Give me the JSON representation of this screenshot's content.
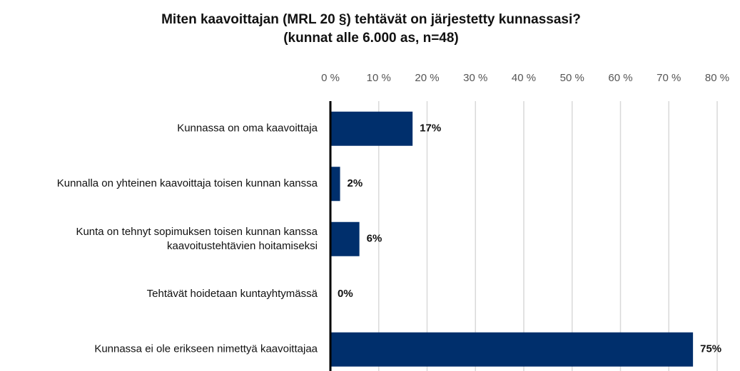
{
  "chart_data": {
    "type": "bar",
    "orientation": "horizontal",
    "title": [
      "Miten kaavoittajan (MRL 20 §) tehtävät on järjestetty kunnassasi?",
      "(kunnat alle 6.000 as, n=48)"
    ],
    "categories": [
      "Kunnassa on oma kaavoittaja",
      "Kunnalla on yhteinen kaavoittaja toisen kunnan kanssa",
      "Kunta on tehnyt sopimuksen toisen kunnan kanssa kaavoitustehtävien hoitamiseksi",
      "Tehtävät hoidetaan kuntayhtymässä",
      "Kunnassa ei ole erikseen nimettyä kaavoittajaa"
    ],
    "values": [
      17,
      2,
      6,
      0,
      75
    ],
    "value_labels": [
      "17%",
      "2%",
      "6%",
      "0%",
      "75%"
    ],
    "color": "#002f6c",
    "xlim": [
      0,
      80
    ],
    "xticks": [
      {
        "value": 0,
        "label": "0 %"
      },
      {
        "value": 10,
        "label": "10 %"
      },
      {
        "value": 20,
        "label": "20 %"
      },
      {
        "value": 30,
        "label": "30 %"
      },
      {
        "value": 40,
        "label": "40 %"
      },
      {
        "value": 50,
        "label": "50 %"
      },
      {
        "value": 60,
        "label": "60 %"
      },
      {
        "value": 70,
        "label": "70 %"
      },
      {
        "value": 80,
        "label": "80 %"
      }
    ],
    "grid": true
  }
}
